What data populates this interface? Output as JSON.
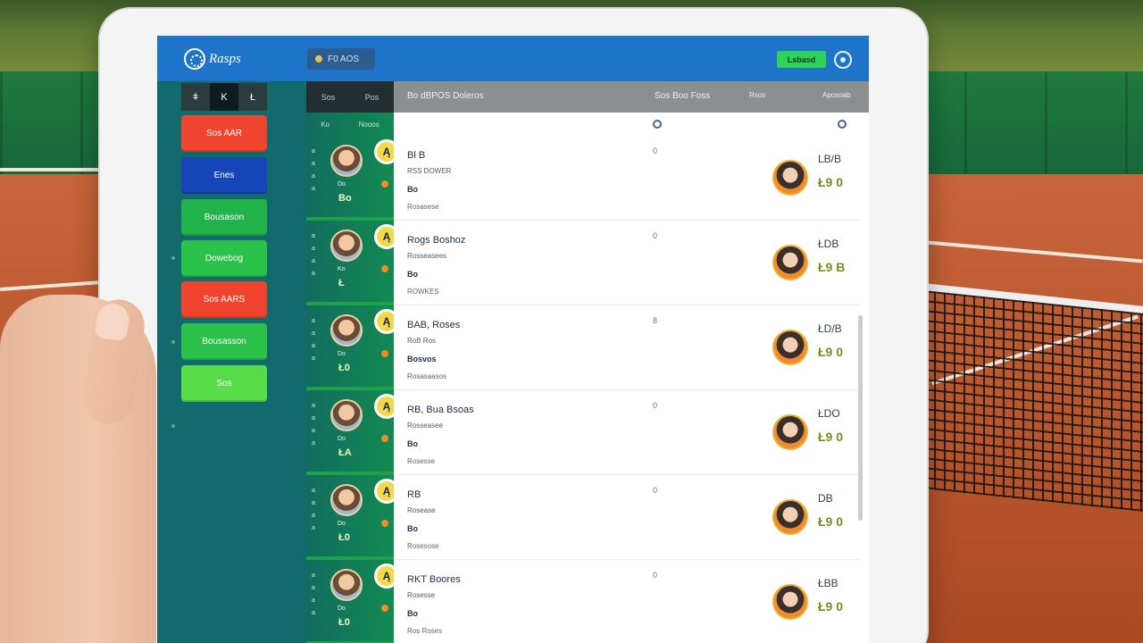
{
  "header": {
    "logo_text": "Rasps",
    "search_label": "F0 AOS",
    "action_label": "Lsbasd"
  },
  "sidebar": {
    "tabs": [
      "ǂ",
      "K",
      "Ł"
    ],
    "buttons": [
      {
        "label": "Sos AAR",
        "color": "#f0442e"
      },
      {
        "label": "Enes",
        "color": "#1746b8"
      },
      {
        "label": "Bousason",
        "color": "#22b24a"
      },
      {
        "label": "Dowebog",
        "color": "#2cc14a"
      },
      {
        "label": "Sos AARS",
        "color": "#f0442e"
      },
      {
        "label": "Bousasson",
        "color": "#2cc14a"
      },
      {
        "label": "Sos",
        "color": "#58dd4a"
      }
    ]
  },
  "players": {
    "header": [
      "Sos",
      "Pos"
    ],
    "subheader": [
      "Ko",
      "Nooos"
    ],
    "cards": [
      {
        "nums": [
          "a",
          "a",
          "a",
          "a"
        ],
        "badge": "Ą",
        "label": "Do",
        "score": "Bo"
      },
      {
        "nums": [
          "a",
          "a",
          "a",
          "a"
        ],
        "badge": "Ą",
        "label": "Ko",
        "score": "Ł"
      },
      {
        "nums": [
          "a",
          "a",
          "a",
          "a"
        ],
        "badge": "Ą",
        "label": "Do",
        "score": "Ł0"
      },
      {
        "nums": [
          "a",
          "a",
          "a",
          "a"
        ],
        "badge": "Ą",
        "label": "Do",
        "score": "ŁA"
      },
      {
        "nums": [
          "a",
          "a",
          "a",
          "a"
        ],
        "badge": "Ą",
        "label": "Do",
        "score": "Ł0"
      },
      {
        "nums": [
          "a",
          "a",
          "a",
          "a"
        ],
        "badge": "Ą",
        "label": "Do",
        "score": "Ł0"
      }
    ]
  },
  "table": {
    "header": {
      "col1": "Bo dBPOS Doleros",
      "col2": "Sos Boo Foss",
      "col3": "Rsos",
      "col4": "Aposoab"
    },
    "rows": [
      {
        "name": "Bl B",
        "sub": "RSS DOWER",
        "code": "Bo",
        "small": "Rosasese",
        "mark": "0",
        "opp_top": "LB/B",
        "opp_score": "Ł9 0"
      },
      {
        "name": "Rogs Boshoz",
        "sub": "Rosseasees",
        "code": "Bo",
        "small": "ROWKES",
        "mark": "0",
        "opp_top": "ŁDB",
        "opp_score": "Ł9 B"
      },
      {
        "name": "BAB, Roses",
        "sub": "RoB Ros",
        "code": "Bosvos",
        "small": "Rosasaasos",
        "mark": "8",
        "opp_top": "ŁD/B",
        "opp_score": "Ł9 0"
      },
      {
        "name": "RB, Bua Bsoas",
        "sub": "Rosseasee",
        "code": "Bo",
        "small": "Rosesse",
        "mark": "0",
        "opp_top": "ŁDO",
        "opp_score": "Ł9 0"
      },
      {
        "name": "RB",
        "sub": "Rosease",
        "code": "Bo",
        "small": "Rosesose",
        "mark": "0",
        "opp_top": "DB",
        "opp_score": "Ł9 0"
      },
      {
        "name": "RKT Boores",
        "sub": "Rosesse",
        "code": "Bo",
        "small": "Ros Roses",
        "mark": "0",
        "opp_top": "ŁBB",
        "opp_score": "Ł9 0"
      }
    ]
  }
}
